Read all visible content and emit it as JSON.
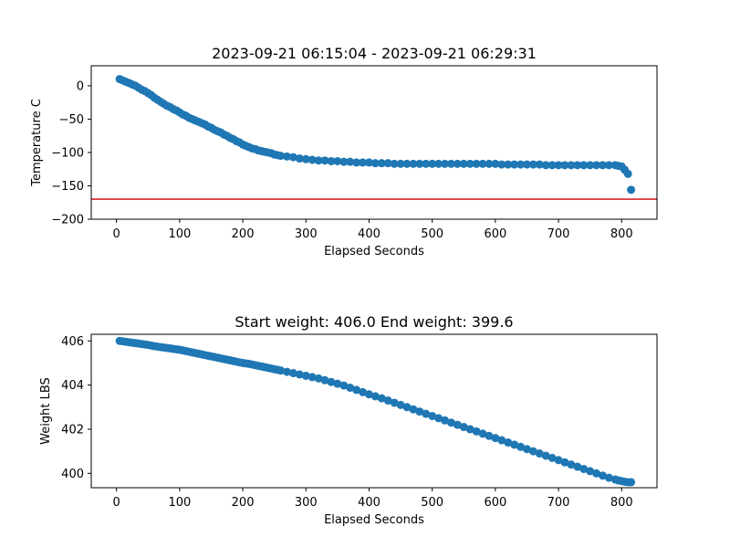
{
  "chart_data": [
    {
      "type": "scatter",
      "title": "2023-09-21 06:15:04 - 2023-09-21 06:29:31",
      "xlabel": "Elapsed Seconds",
      "ylabel": "Temperature C",
      "xlim": [
        -40,
        856
      ],
      "ylim": [
        -200,
        30
      ],
      "xticks": [
        0,
        100,
        200,
        300,
        400,
        500,
        600,
        700,
        800
      ],
      "yticks": [
        0,
        -50,
        -100,
        -150,
        -200
      ],
      "color": "#1f77b4",
      "reference_line": {
        "y": -170,
        "color": "#d62728"
      },
      "series": [
        {
          "x": [
            5,
            10,
            15,
            20,
            25,
            30,
            35,
            40,
            45,
            50,
            55,
            60,
            65,
            70,
            75,
            80,
            85,
            90,
            95,
            100,
            105,
            110,
            115,
            120,
            125,
            130,
            135,
            140,
            145,
            150,
            155,
            160,
            165,
            170,
            175,
            180,
            185,
            190,
            195,
            200,
            205,
            210,
            215,
            220,
            225,
            230,
            235,
            240,
            245,
            250,
            255,
            260,
            270,
            280,
            290,
            300,
            310,
            320,
            330,
            340,
            350,
            360,
            370,
            380,
            390,
            400,
            410,
            420,
            430,
            440,
            450,
            460,
            470,
            480,
            490,
            500,
            510,
            520,
            530,
            540,
            550,
            560,
            570,
            580,
            590,
            600,
            610,
            620,
            630,
            640,
            650,
            660,
            670,
            680,
            690,
            700,
            710,
            720,
            730,
            740,
            750,
            760,
            770,
            780,
            790,
            795,
            800,
            805,
            810,
            815
          ],
          "y": [
            10,
            8,
            6,
            4,
            2,
            0,
            -3,
            -6,
            -8,
            -11,
            -14,
            -18,
            -21,
            -24,
            -27,
            -30,
            -32,
            -35,
            -37,
            -40,
            -43,
            -45,
            -48,
            -50,
            -52,
            -54,
            -56,
            -58,
            -61,
            -63,
            -66,
            -68,
            -70,
            -73,
            -75,
            -78,
            -80,
            -83,
            -85,
            -88,
            -90,
            -92,
            -94,
            -95,
            -97,
            -98,
            -99,
            -100,
            -101,
            -103,
            -104,
            -105,
            -106,
            -107,
            -109,
            -110,
            -111,
            -112,
            -112,
            -113,
            -113,
            -114,
            -114,
            -115,
            -115,
            -115,
            -116,
            -116,
            -116,
            -117,
            -117,
            -117,
            -117,
            -117,
            -117,
            -117,
            -117,
            -117,
            -117,
            -117,
            -117,
            -117,
            -117,
            -117,
            -117,
            -117,
            -118,
            -118,
            -118,
            -118,
            -118,
            -118,
            -118,
            -119,
            -119,
            -119,
            -119,
            -119,
            -119,
            -119,
            -119,
            -119,
            -119,
            -119,
            -119,
            -120,
            -121,
            -126,
            -132,
            -156
          ]
        }
      ]
    },
    {
      "type": "scatter",
      "title": "Start weight: 406.0 End weight: 399.6",
      "xlabel": "Elapsed Seconds",
      "ylabel": "Weight LBS",
      "xlim": [
        -40,
        856
      ],
      "ylim": [
        399.35,
        406.3
      ],
      "xticks": [
        0,
        100,
        200,
        300,
        400,
        500,
        600,
        700,
        800
      ],
      "yticks": [
        400,
        402,
        404,
        406
      ],
      "color": "#1f77b4",
      "series": [
        {
          "x": [
            5,
            10,
            15,
            20,
            25,
            30,
            35,
            40,
            45,
            50,
            55,
            60,
            65,
            70,
            75,
            80,
            85,
            90,
            95,
            100,
            105,
            110,
            115,
            120,
            125,
            130,
            135,
            140,
            145,
            150,
            155,
            160,
            165,
            170,
            175,
            180,
            185,
            190,
            195,
            200,
            205,
            210,
            215,
            220,
            225,
            230,
            235,
            240,
            245,
            250,
            255,
            260,
            270,
            280,
            290,
            300,
            310,
            320,
            330,
            340,
            350,
            360,
            370,
            380,
            390,
            400,
            410,
            420,
            430,
            440,
            450,
            460,
            470,
            480,
            490,
            500,
            510,
            520,
            530,
            540,
            550,
            560,
            570,
            580,
            590,
            600,
            610,
            620,
            630,
            640,
            650,
            660,
            670,
            680,
            690,
            700,
            710,
            720,
            730,
            740,
            750,
            760,
            770,
            780,
            790,
            795,
            800,
            805,
            810,
            815
          ],
          "y": [
            406.0,
            405.98,
            405.96,
            405.94,
            405.92,
            405.9,
            405.88,
            405.86,
            405.84,
            405.82,
            405.79,
            405.76,
            405.74,
            405.72,
            405.7,
            405.68,
            405.66,
            405.64,
            405.62,
            405.6,
            405.57,
            405.54,
            405.51,
            405.48,
            405.45,
            405.42,
            405.39,
            405.36,
            405.33,
            405.3,
            405.27,
            405.24,
            405.21,
            405.18,
            405.15,
            405.12,
            405.09,
            405.06,
            405.03,
            405.0,
            404.98,
            404.96,
            404.93,
            404.9,
            404.87,
            404.84,
            404.81,
            404.78,
            404.75,
            404.72,
            404.69,
            404.66,
            404.6,
            404.54,
            404.48,
            404.42,
            404.36,
            404.3,
            404.22,
            404.14,
            404.06,
            403.98,
            403.88,
            403.78,
            403.68,
            403.58,
            403.49,
            403.4,
            403.3,
            403.2,
            403.1,
            403.0,
            402.9,
            402.8,
            402.7,
            402.6,
            402.5,
            402.4,
            402.3,
            402.2,
            402.1,
            402.0,
            401.9,
            401.8,
            401.7,
            401.6,
            401.5,
            401.4,
            401.3,
            401.2,
            401.1,
            401.0,
            400.9,
            400.8,
            400.7,
            400.6,
            400.5,
            400.4,
            400.3,
            400.2,
            400.1,
            400.0,
            399.9,
            399.8,
            399.72,
            399.68,
            399.65,
            399.62,
            399.6,
            399.6
          ]
        }
      ]
    }
  ]
}
